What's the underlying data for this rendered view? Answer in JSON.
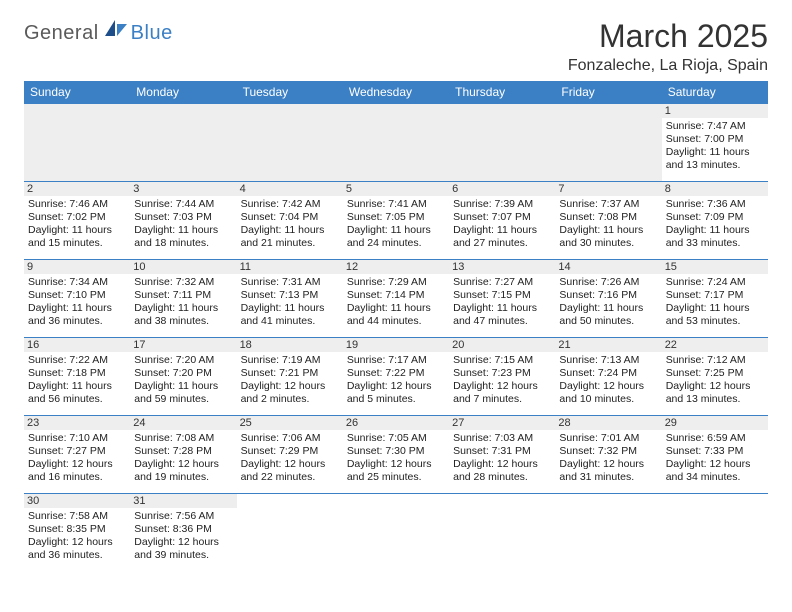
{
  "logo": {
    "part1": "General",
    "part2": "Blue"
  },
  "title": "March 2025",
  "location": "Fonzaleche, La Rioja, Spain",
  "colors": {
    "header_bg": "#3b7fc4",
    "header_text": "#ffffff",
    "border": "#3b7fc4",
    "empty_bg": "#eeeeee"
  },
  "weekdays": [
    "Sunday",
    "Monday",
    "Tuesday",
    "Wednesday",
    "Thursday",
    "Friday",
    "Saturday"
  ],
  "days": {
    "1": {
      "sunrise": "Sunrise: 7:47 AM",
      "sunset": "Sunset: 7:00 PM",
      "daylight1": "Daylight: 11 hours",
      "daylight2": "and 13 minutes."
    },
    "2": {
      "sunrise": "Sunrise: 7:46 AM",
      "sunset": "Sunset: 7:02 PM",
      "daylight1": "Daylight: 11 hours",
      "daylight2": "and 15 minutes."
    },
    "3": {
      "sunrise": "Sunrise: 7:44 AM",
      "sunset": "Sunset: 7:03 PM",
      "daylight1": "Daylight: 11 hours",
      "daylight2": "and 18 minutes."
    },
    "4": {
      "sunrise": "Sunrise: 7:42 AM",
      "sunset": "Sunset: 7:04 PM",
      "daylight1": "Daylight: 11 hours",
      "daylight2": "and 21 minutes."
    },
    "5": {
      "sunrise": "Sunrise: 7:41 AM",
      "sunset": "Sunset: 7:05 PM",
      "daylight1": "Daylight: 11 hours",
      "daylight2": "and 24 minutes."
    },
    "6": {
      "sunrise": "Sunrise: 7:39 AM",
      "sunset": "Sunset: 7:07 PM",
      "daylight1": "Daylight: 11 hours",
      "daylight2": "and 27 minutes."
    },
    "7": {
      "sunrise": "Sunrise: 7:37 AM",
      "sunset": "Sunset: 7:08 PM",
      "daylight1": "Daylight: 11 hours",
      "daylight2": "and 30 minutes."
    },
    "8": {
      "sunrise": "Sunrise: 7:36 AM",
      "sunset": "Sunset: 7:09 PM",
      "daylight1": "Daylight: 11 hours",
      "daylight2": "and 33 minutes."
    },
    "9": {
      "sunrise": "Sunrise: 7:34 AM",
      "sunset": "Sunset: 7:10 PM",
      "daylight1": "Daylight: 11 hours",
      "daylight2": "and 36 minutes."
    },
    "10": {
      "sunrise": "Sunrise: 7:32 AM",
      "sunset": "Sunset: 7:11 PM",
      "daylight1": "Daylight: 11 hours",
      "daylight2": "and 38 minutes."
    },
    "11": {
      "sunrise": "Sunrise: 7:31 AM",
      "sunset": "Sunset: 7:13 PM",
      "daylight1": "Daylight: 11 hours",
      "daylight2": "and 41 minutes."
    },
    "12": {
      "sunrise": "Sunrise: 7:29 AM",
      "sunset": "Sunset: 7:14 PM",
      "daylight1": "Daylight: 11 hours",
      "daylight2": "and 44 minutes."
    },
    "13": {
      "sunrise": "Sunrise: 7:27 AM",
      "sunset": "Sunset: 7:15 PM",
      "daylight1": "Daylight: 11 hours",
      "daylight2": "and 47 minutes."
    },
    "14": {
      "sunrise": "Sunrise: 7:26 AM",
      "sunset": "Sunset: 7:16 PM",
      "daylight1": "Daylight: 11 hours",
      "daylight2": "and 50 minutes."
    },
    "15": {
      "sunrise": "Sunrise: 7:24 AM",
      "sunset": "Sunset: 7:17 PM",
      "daylight1": "Daylight: 11 hours",
      "daylight2": "and 53 minutes."
    },
    "16": {
      "sunrise": "Sunrise: 7:22 AM",
      "sunset": "Sunset: 7:18 PM",
      "daylight1": "Daylight: 11 hours",
      "daylight2": "and 56 minutes."
    },
    "17": {
      "sunrise": "Sunrise: 7:20 AM",
      "sunset": "Sunset: 7:20 PM",
      "daylight1": "Daylight: 11 hours",
      "daylight2": "and 59 minutes."
    },
    "18": {
      "sunrise": "Sunrise: 7:19 AM",
      "sunset": "Sunset: 7:21 PM",
      "daylight1": "Daylight: 12 hours",
      "daylight2": "and 2 minutes."
    },
    "19": {
      "sunrise": "Sunrise: 7:17 AM",
      "sunset": "Sunset: 7:22 PM",
      "daylight1": "Daylight: 12 hours",
      "daylight2": "and 5 minutes."
    },
    "20": {
      "sunrise": "Sunrise: 7:15 AM",
      "sunset": "Sunset: 7:23 PM",
      "daylight1": "Daylight: 12 hours",
      "daylight2": "and 7 minutes."
    },
    "21": {
      "sunrise": "Sunrise: 7:13 AM",
      "sunset": "Sunset: 7:24 PM",
      "daylight1": "Daylight: 12 hours",
      "daylight2": "and 10 minutes."
    },
    "22": {
      "sunrise": "Sunrise: 7:12 AM",
      "sunset": "Sunset: 7:25 PM",
      "daylight1": "Daylight: 12 hours",
      "daylight2": "and 13 minutes."
    },
    "23": {
      "sunrise": "Sunrise: 7:10 AM",
      "sunset": "Sunset: 7:27 PM",
      "daylight1": "Daylight: 12 hours",
      "daylight2": "and 16 minutes."
    },
    "24": {
      "sunrise": "Sunrise: 7:08 AM",
      "sunset": "Sunset: 7:28 PM",
      "daylight1": "Daylight: 12 hours",
      "daylight2": "and 19 minutes."
    },
    "25": {
      "sunrise": "Sunrise: 7:06 AM",
      "sunset": "Sunset: 7:29 PM",
      "daylight1": "Daylight: 12 hours",
      "daylight2": "and 22 minutes."
    },
    "26": {
      "sunrise": "Sunrise: 7:05 AM",
      "sunset": "Sunset: 7:30 PM",
      "daylight1": "Daylight: 12 hours",
      "daylight2": "and 25 minutes."
    },
    "27": {
      "sunrise": "Sunrise: 7:03 AM",
      "sunset": "Sunset: 7:31 PM",
      "daylight1": "Daylight: 12 hours",
      "daylight2": "and 28 minutes."
    },
    "28": {
      "sunrise": "Sunrise: 7:01 AM",
      "sunset": "Sunset: 7:32 PM",
      "daylight1": "Daylight: 12 hours",
      "daylight2": "and 31 minutes."
    },
    "29": {
      "sunrise": "Sunrise: 6:59 AM",
      "sunset": "Sunset: 7:33 PM",
      "daylight1": "Daylight: 12 hours",
      "daylight2": "and 34 minutes."
    },
    "30": {
      "sunrise": "Sunrise: 7:58 AM",
      "sunset": "Sunset: 8:35 PM",
      "daylight1": "Daylight: 12 hours",
      "daylight2": "and 36 minutes."
    },
    "31": {
      "sunrise": "Sunrise: 7:56 AM",
      "sunset": "Sunset: 8:36 PM",
      "daylight1": "Daylight: 12 hours",
      "daylight2": "and 39 minutes."
    }
  },
  "grid": [
    [
      null,
      null,
      null,
      null,
      null,
      null,
      "1"
    ],
    [
      "2",
      "3",
      "4",
      "5",
      "6",
      "7",
      "8"
    ],
    [
      "9",
      "10",
      "11",
      "12",
      "13",
      "14",
      "15"
    ],
    [
      "16",
      "17",
      "18",
      "19",
      "20",
      "21",
      "22"
    ],
    [
      "23",
      "24",
      "25",
      "26",
      "27",
      "28",
      "29"
    ],
    [
      "30",
      "31",
      null,
      null,
      null,
      null,
      null
    ]
  ]
}
